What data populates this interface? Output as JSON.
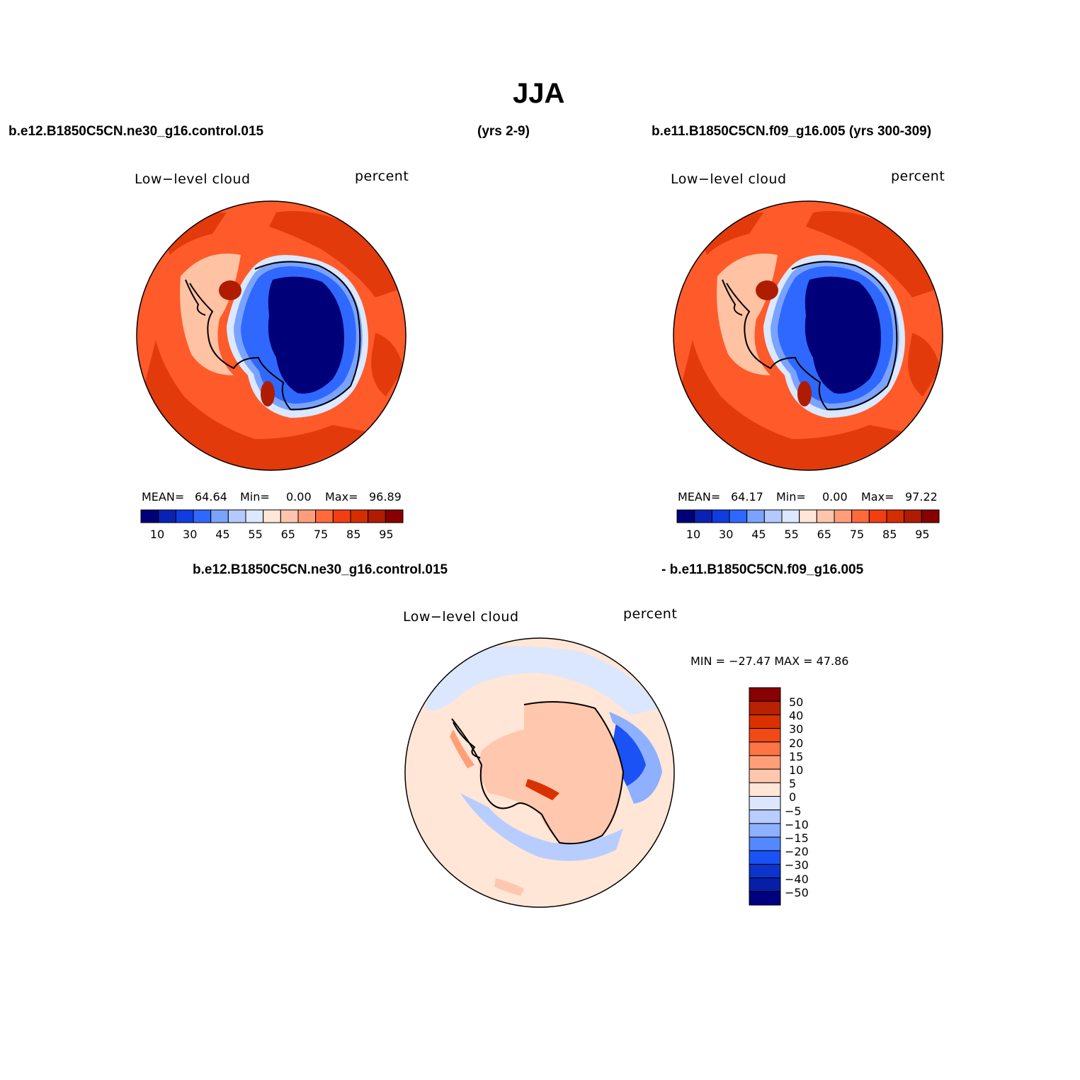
{
  "figure": {
    "title": "JJA",
    "case1_label": "b.e12.B1850C5CN.ne30_g16.control.015",
    "case1_years": "(yrs 2-9)",
    "case2_label": "b.e11.B1850C5CN.f09_g16.005 (yrs 300-309)",
    "diff_label_a": "b.e12.B1850C5CN.ne30_g16.control.015",
    "diff_label_b": "- b.e11.B1850C5CN.f09_g16.005"
  },
  "panels": [
    {
      "variable": "Low−level  cloud",
      "units": "percent",
      "mean_label": "MEAN=",
      "mean": "64.64",
      "min_label": "Min=",
      "min": "0.00",
      "max_label": "Max=",
      "max": "96.89",
      "colorbar_ticks": [
        "10",
        "30",
        "45",
        "55",
        "65",
        "75",
        "85",
        "95"
      ]
    },
    {
      "variable": "Low−level  cloud",
      "units": "percent",
      "mean_label": "MEAN=",
      "mean": "64.17",
      "min_label": "Min=",
      "min": "0.00",
      "max_label": "Max=",
      "max": "97.22",
      "colorbar_ticks": [
        "10",
        "30",
        "45",
        "55",
        "65",
        "75",
        "85",
        "95"
      ]
    }
  ],
  "diff_panel": {
    "variable": "Low−level  cloud",
    "units": "percent",
    "minmax_text": "MIN = −27.47 MAX =   47.86",
    "colorbar_ticks": [
      "50",
      "40",
      "30",
      "20",
      "15",
      "10",
      "5",
      "0",
      "−5",
      "−10",
      "−15",
      "−20",
      "−30",
      "−40",
      "−50"
    ]
  },
  "colors": {
    "seq": [
      "#000079",
      "#0a22b3",
      "#0f3de0",
      "#2f68ff",
      "#7aa3ff",
      "#b3c9ff",
      "#dbe8ff",
      "#ffe6d6",
      "#ffc5ad",
      "#ff9d7a",
      "#ff6a3d",
      "#f23e10",
      "#d42e00",
      "#b01c00",
      "#880000"
    ],
    "diff": [
      "#880000",
      "#b82200",
      "#d93100",
      "#f24a14",
      "#ff7445",
      "#ff9e78",
      "#ffc7ae",
      "#ffe6d6",
      "#dae7ff",
      "#b7cdff",
      "#8eb0ff",
      "#5488ff",
      "#1b52f5",
      "#0c33cc",
      "#071fa8",
      "#000080"
    ]
  }
}
